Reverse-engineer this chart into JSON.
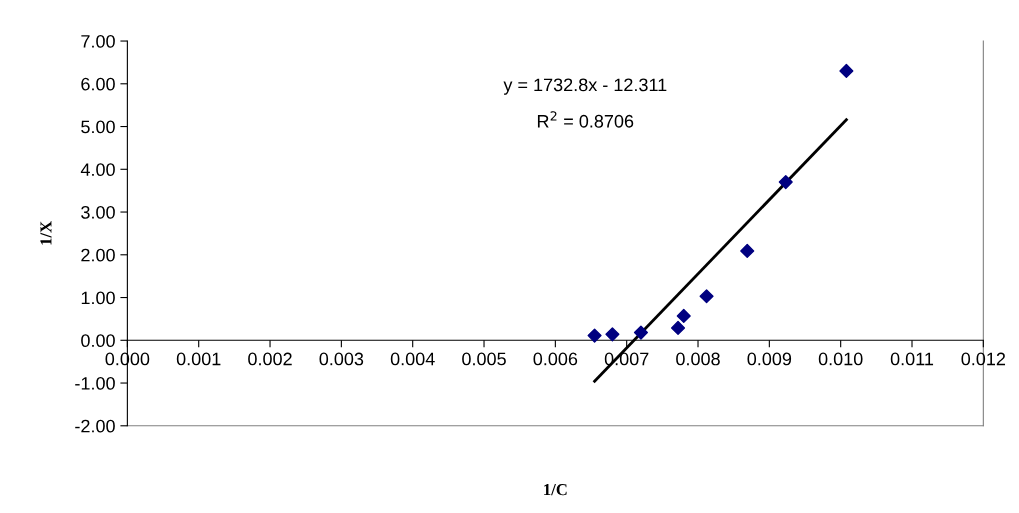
{
  "chart_data": {
    "type": "scatter",
    "xlabel": "1/C",
    "ylabel": "1/X",
    "annotations": [
      "y = 1732.8x - 12.311",
      "R$^{2}$ = 0.8706"
    ],
    "xlim": [
      0,
      0.012
    ],
    "xticks": [
      {
        "value": 0,
        "label": "0.000"
      },
      {
        "value": 0.001,
        "label": "0.001"
      },
      {
        "value": 0.002,
        "label": "0.002"
      },
      {
        "value": 0.003,
        "label": "0.003"
      },
      {
        "value": 0.004,
        "label": "0.004"
      },
      {
        "value": 0.005,
        "label": "0.005"
      },
      {
        "value": 0.006,
        "label": "0.006"
      },
      {
        "value": 0.007,
        "label": "0.007"
      },
      {
        "value": 0.008,
        "label": "0.008"
      },
      {
        "value": 0.009,
        "label": "0.009"
      },
      {
        "value": 0.01,
        "label": "0.010"
      },
      {
        "value": 0.011,
        "label": "0.011"
      },
      {
        "value": 0.012,
        "label": "0.012"
      }
    ],
    "ylim": [
      -2,
      7
    ],
    "yticks": [
      {
        "value": -2,
        "label": "-2.00"
      },
      {
        "value": -1,
        "label": "-1.00"
      },
      {
        "value": 0,
        "label": "0.00"
      },
      {
        "value": 1,
        "label": "1.00"
      },
      {
        "value": 2,
        "label": "2.00"
      },
      {
        "value": 3,
        "label": "3.00"
      },
      {
        "value": 4,
        "label": "4.00"
      },
      {
        "value": 5,
        "label": "5.00"
      },
      {
        "value": 6,
        "label": "6.00"
      },
      {
        "value": 7,
        "label": "7.00"
      }
    ],
    "grid": false,
    "legend": false,
    "series": [
      {
        "marker": "diamond",
        "color": "#000080",
        "x": [
          0.00655,
          0.0068,
          0.0072,
          0.00772,
          0.0078,
          0.00812,
          0.00869,
          0.00923,
          0.01008
        ],
        "values": [
          0.11,
          0.14,
          0.18,
          0.29,
          0.57,
          1.03,
          2.09,
          3.7,
          6.3
        ]
      },
      {
        "type": "line",
        "marker": "none",
        "color": "#000000",
        "x": [
          0.00655,
          0.01008
        ],
        "values": [
          -0.96,
          5.16
        ]
      }
    ]
  }
}
